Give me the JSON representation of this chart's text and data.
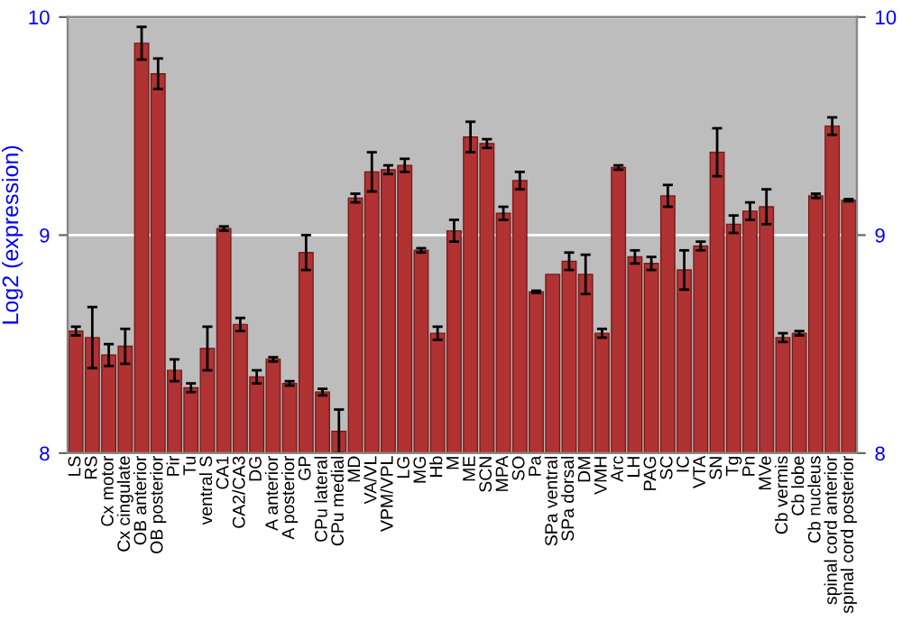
{
  "chart_data": {
    "type": "bar",
    "ylabel": "Log2 (expression)",
    "categories": [
      "LS",
      "RS",
      "Cx motor",
      "Cx cingulate",
      "OB anterior",
      "OB posterior",
      "Pir",
      "Tu",
      "ventral S",
      "CA1",
      "CA2/CA3",
      "DG",
      "A anterior",
      "A posterior",
      "GP",
      "CPu lateral",
      "CPu medial",
      "MD",
      "VA/VL",
      "VPM/VPL",
      "LG",
      "MG",
      "Hb",
      "M",
      "ME",
      "SCN",
      "MPA",
      "SO",
      "Pa",
      "SPa ventral",
      "SPa dorsal",
      "DM",
      "VMH",
      "Arc",
      "LH",
      "PAG",
      "SC",
      "IC",
      "VTA",
      "SN",
      "Tg",
      "Pn",
      "MVe",
      "Cb vermis",
      "Cb lobe",
      "Cb nucleus",
      "spinal cord anterior",
      "spinal cord posterior"
    ],
    "values": [
      8.56,
      8.53,
      8.45,
      8.49,
      9.88,
      9.74,
      8.38,
      8.3,
      8.48,
      9.03,
      8.59,
      8.35,
      8.43,
      8.32,
      8.92,
      8.28,
      8.1,
      9.17,
      9.29,
      9.3,
      9.32,
      8.93,
      8.55,
      9.02,
      9.45,
      9.42,
      9.1,
      9.25,
      8.74,
      8.82,
      8.88,
      8.82,
      8.55,
      9.31,
      8.9,
      8.87,
      9.18,
      8.84,
      8.95,
      9.38,
      9.05,
      9.11,
      9.13,
      8.53,
      8.55,
      9.18,
      9.5,
      9.16
    ],
    "errors": [
      0.02,
      0.14,
      0.05,
      0.08,
      0.075,
      0.07,
      0.05,
      0.02,
      0.1,
      0.01,
      0.03,
      0.03,
      0.01,
      0.01,
      0.08,
      0.015,
      0.1,
      0.02,
      0.09,
      0.02,
      0.03,
      0.01,
      0.03,
      0.05,
      0.07,
      0.02,
      0.03,
      0.04,
      0.005,
      null,
      0.04,
      0.09,
      0.02,
      0.01,
      0.03,
      0.03,
      0.05,
      0.09,
      0.02,
      0.11,
      0.04,
      0.04,
      0.08,
      0.02,
      0.01,
      0.01,
      0.04,
      0.005
    ],
    "color": "#b03232",
    "ylim": [
      8,
      10
    ],
    "yticks": [
      8,
      9,
      10
    ],
    "y2lim": [
      8,
      10
    ],
    "y2ticks": [
      8,
      9,
      10
    ],
    "grid": "y"
  }
}
